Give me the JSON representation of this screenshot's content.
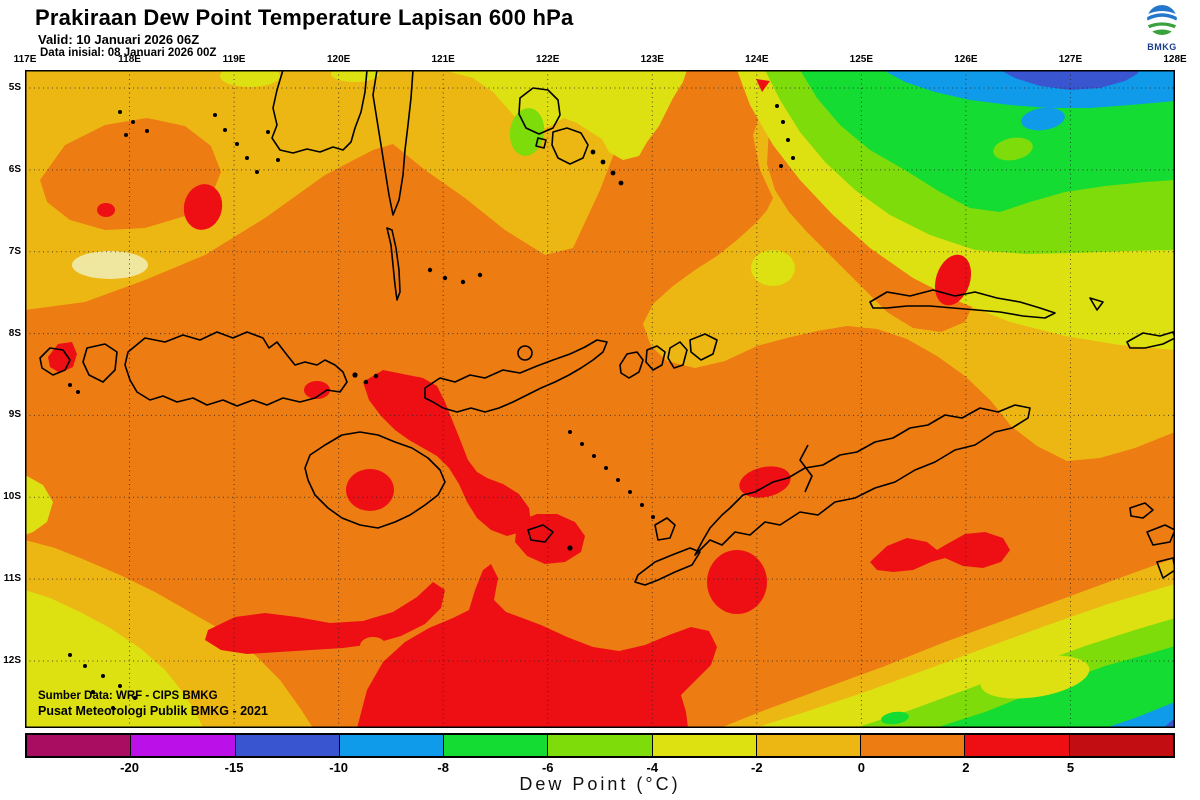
{
  "header": {
    "title": "Prakiraan Dew Point Temperature Lapisan 600 hPa",
    "valid": "Valid: 10 Januari 2026 06Z",
    "init": "Data inisial: 08 Januari 2026 00Z"
  },
  "logo": {
    "label": "BMKG"
  },
  "map": {
    "lon_ticks": [
      "117E",
      "118E",
      "119E",
      "120E",
      "121E",
      "122E",
      "123E",
      "124E",
      "125E",
      "126E",
      "127E",
      "128E"
    ],
    "lat_ticks": [
      "5S",
      "6S",
      "7S",
      "8S",
      "9S",
      "10S",
      "11S",
      "12S"
    ],
    "credits": [
      "Sumber Data: WRF - CIPS BMKG",
      "Pusat Meteorologi Publik BMKG - 2021"
    ]
  },
  "colorbar": {
    "title": "Dew Point (°C)",
    "boundary_labels": [
      "-20",
      "-15",
      "-10",
      "-8",
      "-6",
      "-4",
      "-2",
      "0",
      "2",
      "5"
    ],
    "segment_colors": [
      "#a80d62",
      "#bc10e8",
      "#3a55d0",
      "#0f9bea",
      "#14dc32",
      "#7edc0a",
      "#dde112",
      "#edb713",
      "#ed7c12",
      "#ee0f15",
      "#c20d12"
    ]
  },
  "palette": {
    "dark_magenta": "#a80d62",
    "magenta": "#bc10e8",
    "royal_blue": "#3a55d0",
    "dodger_blue": "#0f9bea",
    "green": "#14dc32",
    "chartreuse": "#7edc0a",
    "yellow": "#dde112",
    "amber": "#edb713",
    "orange": "#ed7c12",
    "red": "#ee0f15",
    "dark_red": "#c20d12",
    "pale_yellow": "#efe7a0"
  },
  "chart_data": {
    "type": "heatmap",
    "title": "Prakiraan Dew Point Temperature Lapisan 600 hPa",
    "units": "°C",
    "contour_levels": [
      -20,
      -15,
      -10,
      -8,
      -6,
      -4,
      -2,
      0,
      2,
      5
    ],
    "lon_range_deg_east": [
      117,
      128
    ],
    "lat_range_deg_south": [
      4.8,
      12.8
    ],
    "legend_position": "bottom",
    "description": "Filled-contour dew point forecast over the Lesser Sunda Islands / south Sulawesi region. Dominant values -2 to 0 °C (amber) north and 0 to 2 °C (orange) center-south; >2 °C (red) patches south of Sumbawa/Flores, around Sumba, Sawu and along 11-12S; cooler diagonal bands down to -10 °C (yellow-green-blue) in the northeast and southeast corners."
  }
}
